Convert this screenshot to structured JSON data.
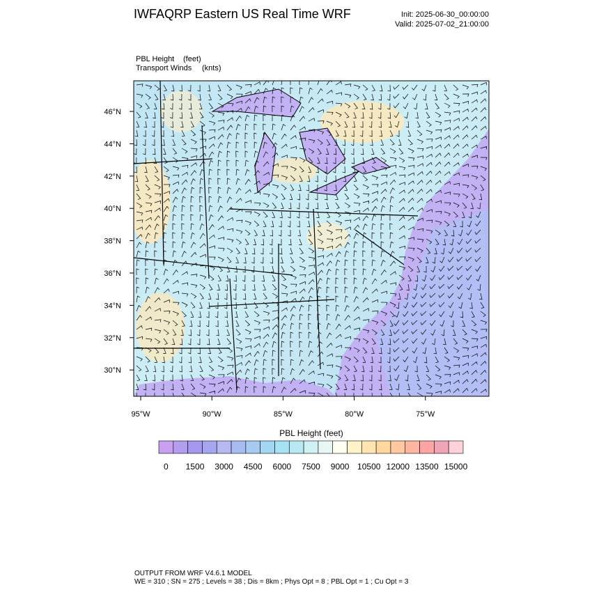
{
  "header": {
    "title": "IWFAQRP Eastern US Real Time WRF",
    "init": "Init: 2025-06-30_00:00:00",
    "valid": "Valid: 2025-07-02_21:00:00"
  },
  "fields": [
    {
      "name": "PBL Height",
      "unit": "(feet)"
    },
    {
      "name": "Transport Winds",
      "unit": "(knts)"
    }
  ],
  "map": {
    "lat_labels": [
      "46°N",
      "44°N",
      "42°N",
      "40°N",
      "38°N",
      "36°N",
      "34°N",
      "32°N",
      "30°N"
    ],
    "lon_labels": [
      "95°W",
      "90°W",
      "85°W",
      "80°W",
      "75°W"
    ]
  },
  "colorbar": {
    "title": "PBL Height  (feet)",
    "labels": [
      0,
      1500,
      3000,
      4500,
      6000,
      7500,
      9000,
      10500,
      12000,
      13500,
      15000
    ],
    "colors": [
      "#c8a0f0",
      "#b49cf0",
      "#a596ee",
      "#a6a6f0",
      "#b6b8f0",
      "#a8bcf2",
      "#a6caf2",
      "#a2d6f2",
      "#a4e2f4",
      "#b8e8f2",
      "#cef0f2",
      "#e8f6f6",
      "#fffff2",
      "#fff2c8",
      "#ffe6b0",
      "#ffd8a0",
      "#ffc8a0",
      "#ffb6a0",
      "#ffa4a4",
      "#eea6b6",
      "#ffd2da"
    ]
  },
  "footer": {
    "model": "OUTPUT FROM WRF V4.6.1 MODEL",
    "settings": "WE = 310 ; SN = 275 ; Levels = 38 ; Dis = 8km ; Phys Opt = 8 ; PBL Opt = 1 ; Cu Opt = 3"
  }
}
